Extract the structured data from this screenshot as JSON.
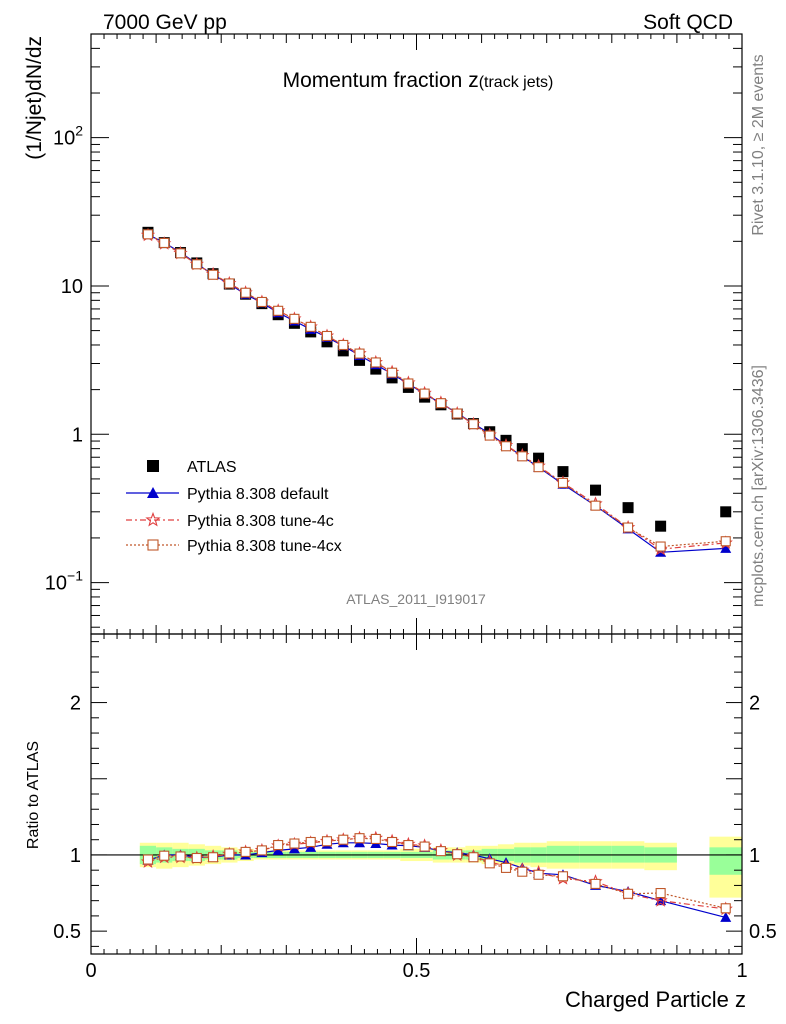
{
  "header": {
    "left": "7000 GeV pp",
    "right": "Soft QCD"
  },
  "side_labels": {
    "rivet": "Rivet 3.1.10, ≥ 2M events",
    "mcplots": "mcplots.cern.ch [arXiv:1306.3436]"
  },
  "chart_data": [
    {
      "type": "scatter",
      "panel": "main",
      "title_main": "Momentum fraction z",
      "title_sub": "(track jets)",
      "ylabel": "(1/Njet)dN/dz",
      "xlabel": "Charged Particle z",
      "analysis_label": "ATLAS_2011_I919017",
      "yscale": "log",
      "xlim": [
        0,
        1
      ],
      "ylim": [
        0.045,
        500
      ],
      "y_ticks": [
        {
          "value": 100,
          "base": "10",
          "exp": "2"
        },
        {
          "value": 10,
          "base": "10",
          "exp": ""
        },
        {
          "value": 1,
          "base": "1",
          "exp": ""
        },
        {
          "value": 0.1,
          "base": "10",
          "exp": "−1"
        }
      ],
      "legend": [
        {
          "key": "atlas",
          "label": "ATLAS"
        },
        {
          "key": "default",
          "label": "Pythia 8.308 default"
        },
        {
          "key": "tune4c",
          "label": "Pythia 8.308 tune-4c"
        },
        {
          "key": "tune4cx",
          "label": "Pythia 8.308 tune-4cx"
        }
      ],
      "x": [
        0.0875,
        0.1125,
        0.1375,
        0.1625,
        0.1875,
        0.2125,
        0.2375,
        0.2625,
        0.2875,
        0.3125,
        0.3375,
        0.3625,
        0.3875,
        0.4125,
        0.4375,
        0.4625,
        0.4875,
        0.5125,
        0.5375,
        0.5625,
        0.5875,
        0.6125,
        0.6375,
        0.6625,
        0.6875,
        0.725,
        0.775,
        0.825,
        0.875,
        0.975
      ],
      "series": [
        {
          "key": "atlas",
          "name": "ATLAS",
          "color": "#000000",
          "marker": "square",
          "values": [
            23.0,
            19.6,
            16.8,
            14.3,
            12.1,
            10.3,
            8.8,
            7.6,
            6.4,
            5.6,
            4.9,
            4.2,
            3.65,
            3.15,
            2.75,
            2.4,
            2.07,
            1.78,
            1.58,
            1.37,
            1.18,
            1.04,
            0.91,
            0.8,
            0.69,
            0.56,
            0.42,
            0.32,
            0.24,
            0.3
          ]
        },
        {
          "key": "default",
          "name": "Pythia 8.308 default",
          "color": "#0000cc",
          "marker": "triangle",
          "values": [
            22.2,
            19.6,
            16.8,
            14.1,
            11.9,
            10.3,
            8.8,
            7.7,
            6.6,
            5.8,
            5.1,
            4.5,
            3.95,
            3.4,
            2.95,
            2.55,
            2.19,
            1.87,
            1.62,
            1.39,
            1.18,
            1.01,
            0.84,
            0.71,
            0.6,
            0.46,
            0.33,
            0.23,
            0.16,
            0.17
          ]
        },
        {
          "key": "tune4c",
          "name": "Pythia 8.308 tune-4c",
          "color": "#e04040",
          "marker": "star",
          "dash": "6,3,2,3",
          "values": [
            22.0,
            19.3,
            16.6,
            14.0,
            12.0,
            10.4,
            9.0,
            7.8,
            6.8,
            6.0,
            5.3,
            4.6,
            4.0,
            3.5,
            3.05,
            2.62,
            2.22,
            1.89,
            1.63,
            1.38,
            1.17,
            0.99,
            0.84,
            0.72,
            0.61,
            0.47,
            0.34,
            0.235,
            0.168,
            0.185
          ]
        },
        {
          "key": "tune4cx",
          "name": "Pythia 8.308 tune-4cx",
          "color": "#c0582a",
          "marker": "opensquare",
          "dash": "2,2",
          "values": [
            22.3,
            19.5,
            16.6,
            14.0,
            11.9,
            10.4,
            9.0,
            7.8,
            6.8,
            6.0,
            5.3,
            4.6,
            4.0,
            3.5,
            3.05,
            2.6,
            2.2,
            1.88,
            1.62,
            1.38,
            1.17,
            0.98,
            0.83,
            0.71,
            0.6,
            0.47,
            0.33,
            0.235,
            0.175,
            0.19
          ]
        }
      ]
    },
    {
      "type": "line",
      "panel": "ratio",
      "ylabel": "Ratio to ATLAS",
      "xlabel": "Charged Particle z",
      "xlim": [
        0,
        1
      ],
      "ylim": [
        0.35,
        2.45
      ],
      "x_ticks": [
        {
          "value": 0,
          "label": "0"
        },
        {
          "value": 0.5,
          "label": "0.5"
        },
        {
          "value": 1,
          "label": "1"
        }
      ],
      "y_ticks": [
        {
          "value": 2,
          "label": "2"
        },
        {
          "value": 1,
          "label": "1"
        },
        {
          "value": 0.5,
          "label": "0.5"
        }
      ],
      "bands": [
        {
          "x0": 0.075,
          "x1": 0.1,
          "y1": [
            0.94,
            1.06
          ],
          "y2": [
            0.92,
            1.08
          ]
        },
        {
          "x0": 0.1,
          "x1": 0.125,
          "y1": [
            0.95,
            1.05
          ],
          "y2": [
            0.91,
            1.08
          ]
        },
        {
          "x0": 0.125,
          "x1": 0.15,
          "y1": [
            0.96,
            1.04
          ],
          "y2": [
            0.92,
            1.08
          ]
        },
        {
          "x0": 0.15,
          "x1": 0.175,
          "y1": [
            0.96,
            1.04
          ],
          "y2": [
            0.93,
            1.07
          ]
        },
        {
          "x0": 0.175,
          "x1": 0.2,
          "y1": [
            0.97,
            1.03
          ],
          "y2": [
            0.94,
            1.06
          ]
        },
        {
          "x0": 0.2,
          "x1": 0.225,
          "y1": [
            0.97,
            1.03
          ],
          "y2": [
            0.95,
            1.05
          ]
        },
        {
          "x0": 0.225,
          "x1": 0.25,
          "y1": [
            0.98,
            1.02
          ],
          "y2": [
            0.96,
            1.04
          ]
        },
        {
          "x0": 0.25,
          "x1": 0.275,
          "y1": [
            0.98,
            1.02
          ],
          "y2": [
            0.97,
            1.03
          ]
        },
        {
          "x0": 0.275,
          "x1": 0.3,
          "y1": [
            0.98,
            1.02
          ],
          "y2": [
            0.97,
            1.03
          ]
        },
        {
          "x0": 0.3,
          "x1": 0.325,
          "y1": [
            0.98,
            1.02
          ],
          "y2": [
            0.97,
            1.03
          ]
        },
        {
          "x0": 0.325,
          "x1": 0.35,
          "y1": [
            0.98,
            1.02
          ],
          "y2": [
            0.97,
            1.03
          ]
        },
        {
          "x0": 0.35,
          "x1": 0.375,
          "y1": [
            0.98,
            1.02
          ],
          "y2": [
            0.97,
            1.03
          ]
        },
        {
          "x0": 0.375,
          "x1": 0.4,
          "y1": [
            0.98,
            1.02
          ],
          "y2": [
            0.97,
            1.03
          ]
        },
        {
          "x0": 0.4,
          "x1": 0.425,
          "y1": [
            0.98,
            1.02
          ],
          "y2": [
            0.97,
            1.03
          ]
        },
        {
          "x0": 0.425,
          "x1": 0.45,
          "y1": [
            0.98,
            1.02
          ],
          "y2": [
            0.97,
            1.03
          ]
        },
        {
          "x0": 0.45,
          "x1": 0.475,
          "y1": [
            0.98,
            1.02
          ],
          "y2": [
            0.97,
            1.03
          ]
        },
        {
          "x0": 0.475,
          "x1": 0.5,
          "y1": [
            0.98,
            1.02
          ],
          "y2": [
            0.96,
            1.04
          ]
        },
        {
          "x0": 0.5,
          "x1": 0.525,
          "y1": [
            0.98,
            1.02
          ],
          "y2": [
            0.96,
            1.04
          ]
        },
        {
          "x0": 0.525,
          "x1": 0.55,
          "y1": [
            0.97,
            1.03
          ],
          "y2": [
            0.95,
            1.05
          ]
        },
        {
          "x0": 0.55,
          "x1": 0.575,
          "y1": [
            0.97,
            1.03
          ],
          "y2": [
            0.95,
            1.05
          ]
        },
        {
          "x0": 0.575,
          "x1": 0.6,
          "y1": [
            0.97,
            1.03
          ],
          "y2": [
            0.95,
            1.06
          ]
        },
        {
          "x0": 0.6,
          "x1": 0.625,
          "y1": [
            0.96,
            1.04
          ],
          "y2": [
            0.94,
            1.06
          ]
        },
        {
          "x0": 0.625,
          "x1": 0.65,
          "y1": [
            0.96,
            1.04
          ],
          "y2": [
            0.94,
            1.07
          ]
        },
        {
          "x0": 0.65,
          "x1": 0.675,
          "y1": [
            0.95,
            1.05
          ],
          "y2": [
            0.93,
            1.08
          ]
        },
        {
          "x0": 0.675,
          "x1": 0.7,
          "y1": [
            0.95,
            1.05
          ],
          "y2": [
            0.92,
            1.08
          ]
        },
        {
          "x0": 0.7,
          "x1": 0.75,
          "y1": [
            0.95,
            1.06
          ],
          "y2": [
            0.91,
            1.09
          ]
        },
        {
          "x0": 0.75,
          "x1": 0.8,
          "y1": [
            0.95,
            1.06
          ],
          "y2": [
            0.91,
            1.09
          ]
        },
        {
          "x0": 0.8,
          "x1": 0.85,
          "y1": [
            0.95,
            1.06
          ],
          "y2": [
            0.91,
            1.09
          ]
        },
        {
          "x0": 0.85,
          "x1": 0.9,
          "y1": [
            0.95,
            1.05
          ],
          "y2": [
            0.9,
            1.08
          ]
        },
        {
          "x0": 0.95,
          "x1": 1.0,
          "y1": [
            0.87,
            1.05
          ],
          "y2": [
            0.72,
            1.12
          ]
        }
      ],
      "series": [
        {
          "key": "default",
          "name": "Pythia 8.308 default",
          "color": "#0000cc",
          "values": [
            0.965,
            1.0,
            1.0,
            0.985,
            0.985,
            1.0,
            1.0,
            1.015,
            1.03,
            1.04,
            1.05,
            1.07,
            1.08,
            1.08,
            1.075,
            1.065,
            1.06,
            1.05,
            1.025,
            1.015,
            1.0,
            0.975,
            0.95,
            0.915,
            0.88,
            0.87,
            0.8,
            0.76,
            0.7,
            0.59
          ]
        },
        {
          "key": "tune4c",
          "name": "Pythia 8.308 tune-4c",
          "color": "#e04040",
          "values": [
            0.955,
            0.985,
            0.985,
            0.98,
            0.99,
            1.005,
            1.02,
            1.03,
            1.06,
            1.07,
            1.08,
            1.09,
            1.1,
            1.11,
            1.11,
            1.09,
            1.07,
            1.06,
            1.03,
            1.0,
            0.99,
            0.955,
            0.925,
            0.9,
            0.885,
            0.845,
            0.825,
            0.745,
            0.7,
            0.645
          ]
        },
        {
          "key": "tune4cx",
          "name": "Pythia 8.308 tune-4cx",
          "color": "#c0582a",
          "values": [
            0.97,
            0.995,
            0.99,
            0.98,
            0.985,
            1.01,
            1.02,
            1.03,
            1.065,
            1.075,
            1.085,
            1.09,
            1.1,
            1.11,
            1.105,
            1.085,
            1.065,
            1.055,
            1.025,
            1.005,
            0.985,
            0.945,
            0.915,
            0.89,
            0.87,
            0.86,
            0.81,
            0.745,
            0.75,
            0.65
          ]
        }
      ]
    }
  ]
}
